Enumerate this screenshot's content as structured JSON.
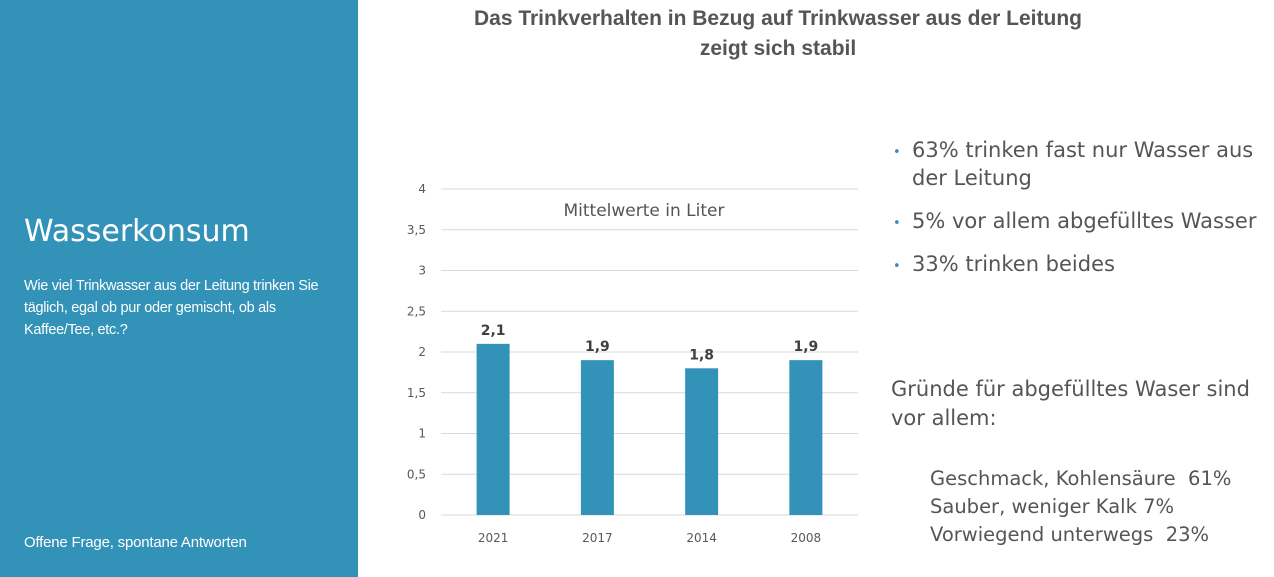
{
  "sidebar": {
    "title": "Wasserkonsum",
    "question": "Wie viel Trinkwasser aus der Leitung trinken Sie täglich,  egal ob pur oder gemischt, ob als Kaffee/Tee, etc.?",
    "footer": "Offene Frage, spontane Antworten"
  },
  "main": {
    "title_line1": "Das Trinkverhalten in Bezug auf Trinkwasser aus der Leitung",
    "title_line2": "zeigt sich stabil"
  },
  "chart_data": {
    "type": "bar",
    "title": "Mittelwerte in Liter",
    "categories": [
      "2021",
      "2017",
      "2014",
      "2008"
    ],
    "values": [
      2.1,
      1.9,
      1.8,
      1.9
    ],
    "value_labels": [
      "2,1",
      "1,9",
      "1,8",
      "1,9"
    ],
    "y_ticks": [
      0,
      0.5,
      1,
      1.5,
      2,
      2.5,
      3,
      3.5,
      4
    ],
    "y_tick_labels": [
      "0",
      "0,5",
      "1",
      "1,5",
      "2",
      "2,5",
      "3",
      "3,5",
      "4"
    ],
    "ylim": [
      0,
      4
    ],
    "xlabel": "",
    "ylabel": "",
    "grid": true,
    "legend": "none",
    "bar_color": "#3392b8"
  },
  "bullets": [
    "63% trinken fast nur Wasser aus der Leitung",
    "5% vor allem abgefülltes Wasser",
    "33% trinken beides"
  ],
  "reasons": {
    "heading": "Gründe für abgefülltes Waser sind vor allem:",
    "items": [
      "Geschmack, Kohlensäure  61%",
      "Sauber, weniger Kalk 7%",
      "Vorwiegend unterwegs  23%"
    ]
  },
  "colors": {
    "accent": "#3392b8",
    "text": "#555555",
    "grid": "#d9d9d9"
  }
}
